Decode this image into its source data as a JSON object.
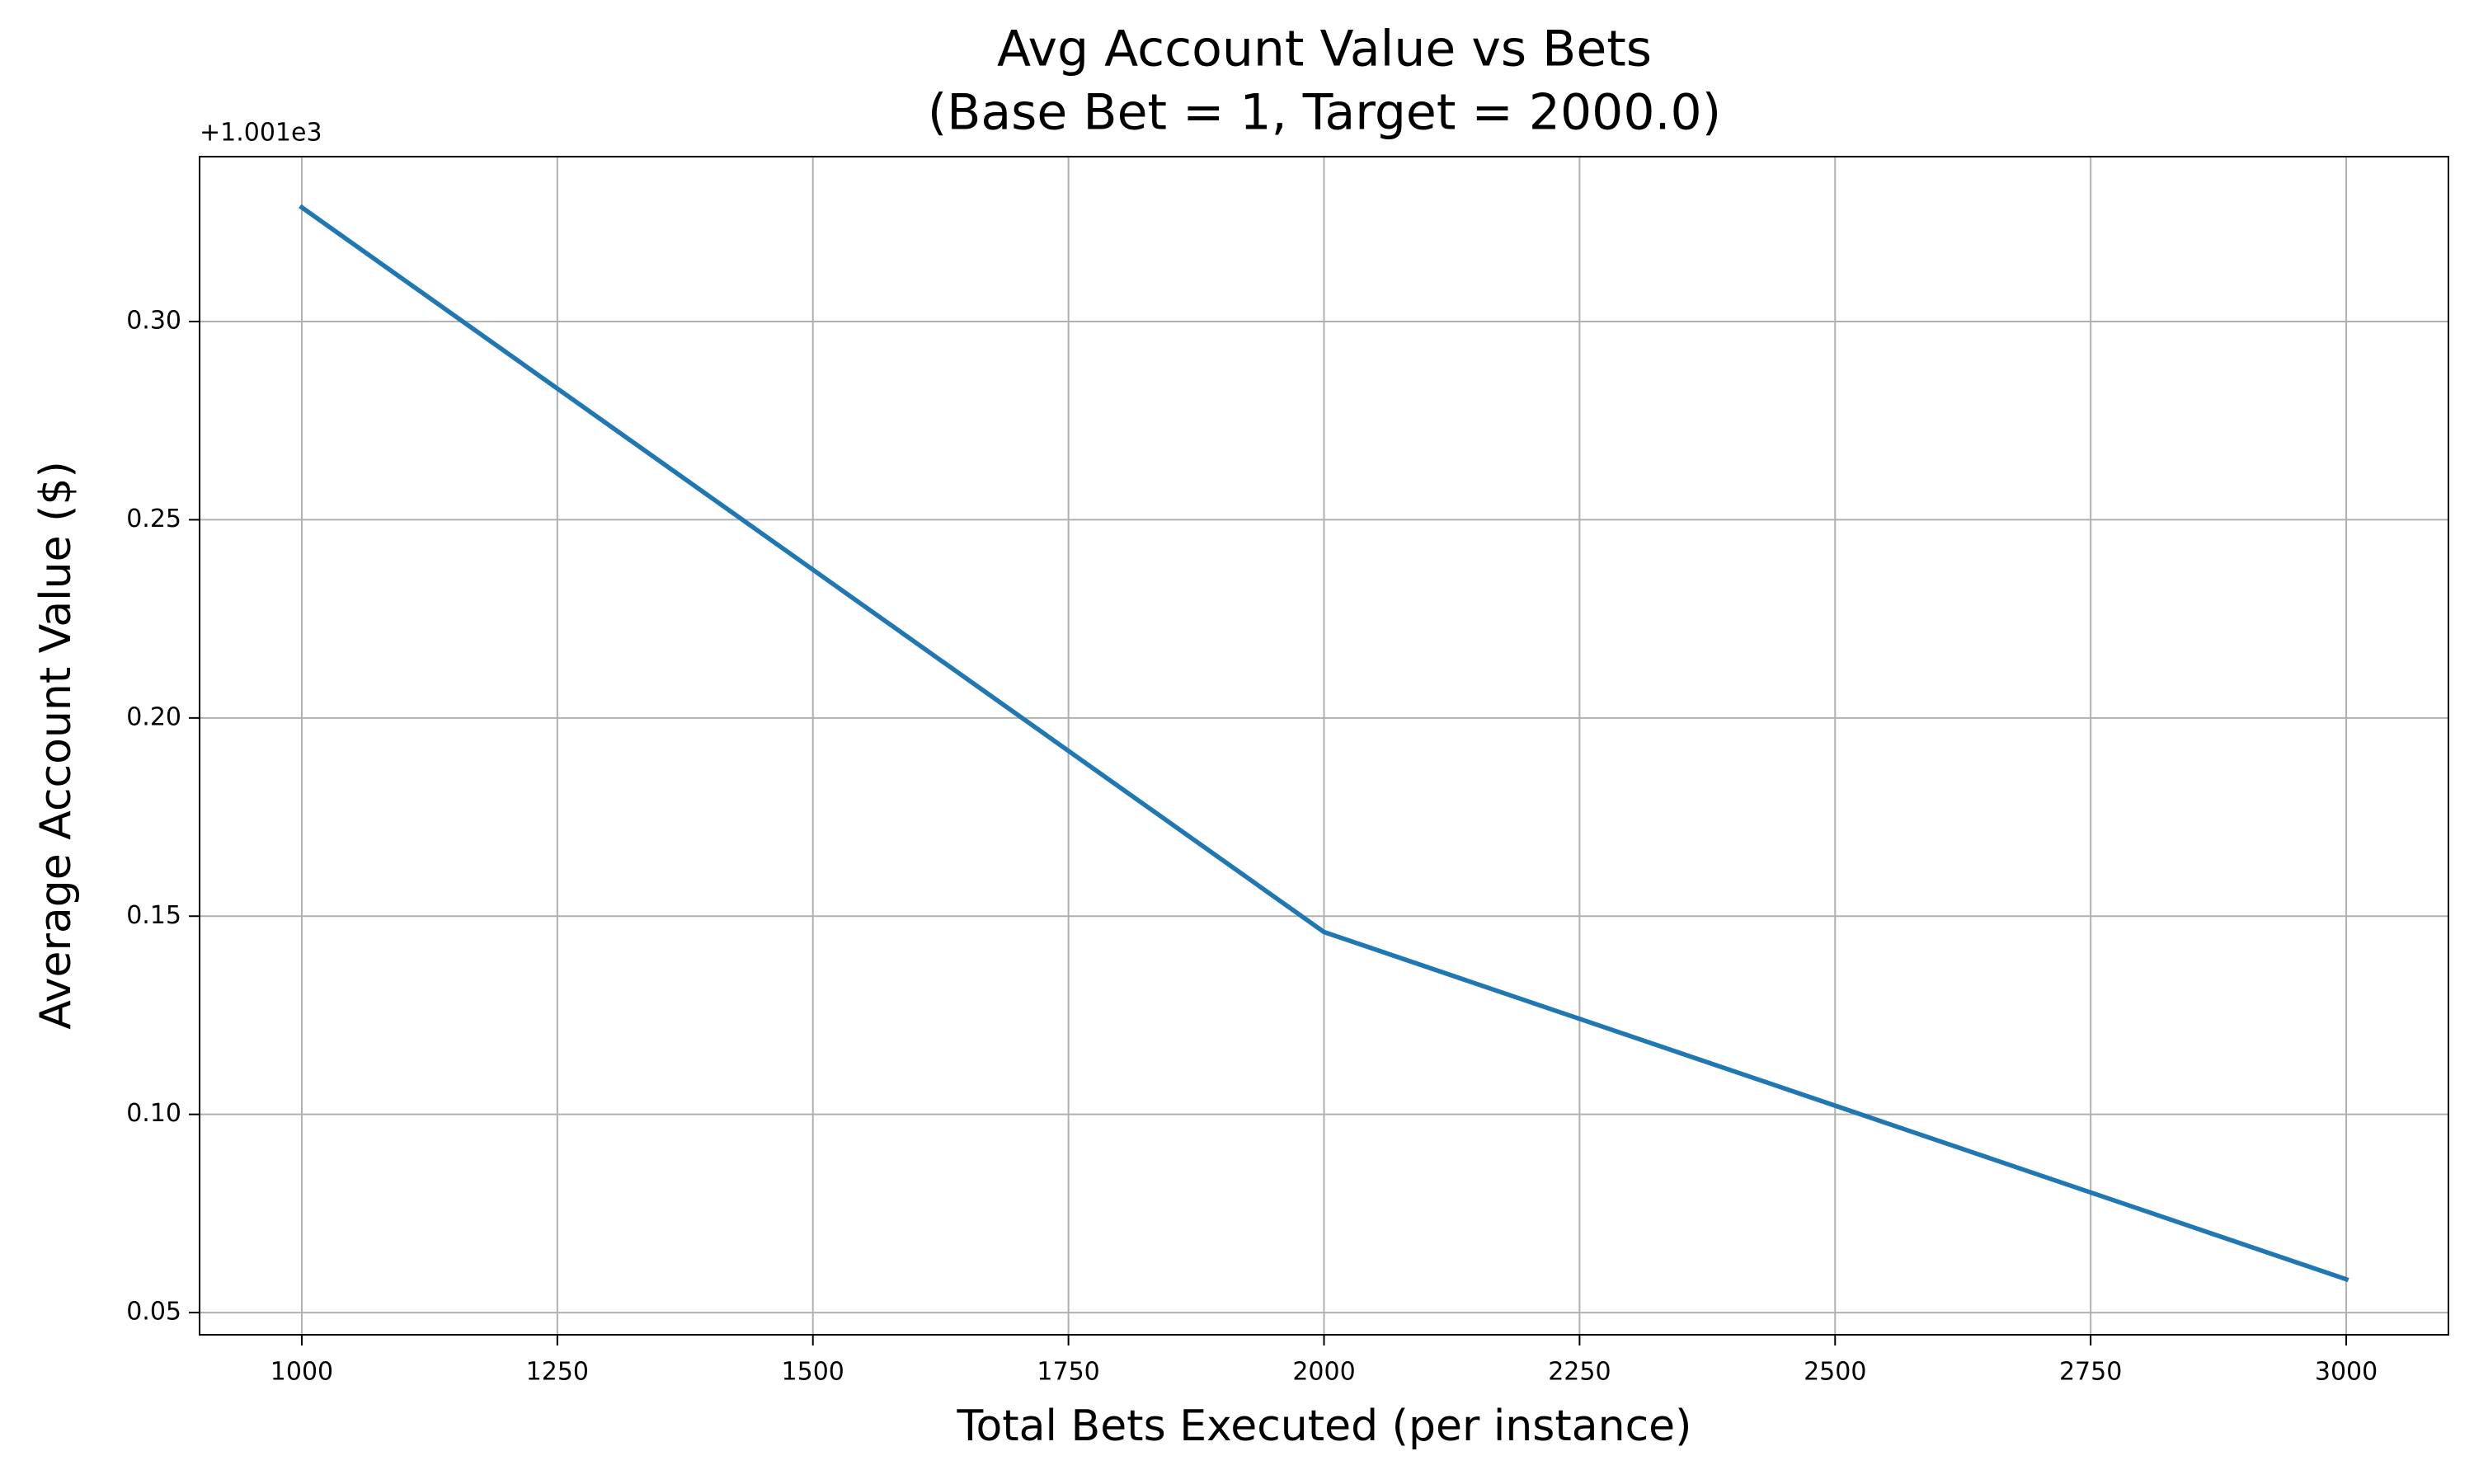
{
  "chart_data": {
    "type": "line",
    "title": "Avg Account Value vs Bets",
    "subtitle": "(Base Bet = 1, Target = 2000.0)",
    "x_label": "Total Bets Executed (per instance)",
    "y_label": "Average Account Value ($)",
    "y_offset_label": "+1.001e3",
    "x": [
      1000,
      2000,
      3000
    ],
    "series": [
      {
        "color": "#1f77b4",
        "values": [
          0.3288,
          0.146,
          0.0584
        ]
      }
    ],
    "xlim": [
      900,
      3100
    ],
    "xticks": [
      1000,
      1250,
      1500,
      1750,
      2000,
      2250,
      2500,
      2750,
      3000
    ],
    "ylim": [
      0.0444,
      0.3416
    ],
    "yticks": [
      {
        "value": 0.05,
        "label": "0.05"
      },
      {
        "value": 0.1,
        "label": "0.10"
      },
      {
        "value": 0.15,
        "label": "0.15"
      },
      {
        "value": 0.2,
        "label": "0.20"
      },
      {
        "value": 0.25,
        "label": "0.25"
      },
      {
        "value": 0.3,
        "label": "0.30"
      }
    ],
    "grid": true
  }
}
